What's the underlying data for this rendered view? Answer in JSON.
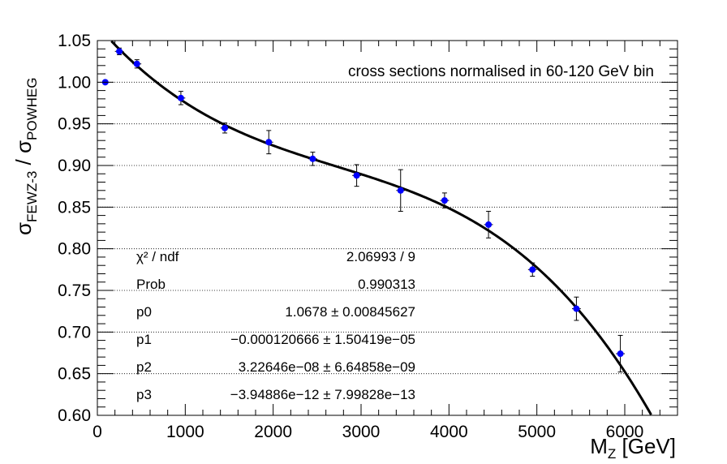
{
  "chart_data": {
    "type": "scatter",
    "annotation": "cross sections normalised in 60-120 GeV bin",
    "xlabel": {
      "main": "M",
      "sub": "Z",
      "rest": " [GeV]"
    },
    "ylabel": {
      "sigma": "σ",
      "sub1": "FEWZ-3",
      "slash": " / ",
      "sub2": "POWHEG"
    },
    "xlim": [
      0,
      6600
    ],
    "ylim": [
      0.6,
      1.05
    ],
    "xticks": [
      0,
      1000,
      2000,
      3000,
      4000,
      5000,
      6000
    ],
    "xtick_labels": [
      "0",
      "1000",
      "2000",
      "3000",
      "4000",
      "5000",
      "6000"
    ],
    "yticks": [
      0.6,
      0.65,
      0.7,
      0.75,
      0.8,
      0.85,
      0.9,
      0.95,
      1.0,
      1.05
    ],
    "ytick_labels": [
      "0.60",
      "0.65",
      "0.70",
      "0.75",
      "0.80",
      "0.85",
      "0.90",
      "0.95",
      "1.00",
      "1.05"
    ],
    "grid": "horizontal dotted",
    "marker_color": "#0000ff",
    "points": [
      {
        "x": 90,
        "y": 1.0,
        "xerr": 0,
        "yerr": 0.0
      },
      {
        "x": 250,
        "y": 1.037,
        "xerr": 50,
        "yerr": 0.004
      },
      {
        "x": 450,
        "y": 1.022,
        "xerr": 50,
        "yerr": 0.005
      },
      {
        "x": 950,
        "y": 0.981,
        "xerr": 50,
        "yerr": 0.008
      },
      {
        "x": 1450,
        "y": 0.945,
        "xerr": 50,
        "yerr": 0.006
      },
      {
        "x": 1950,
        "y": 0.928,
        "xerr": 50,
        "yerr": 0.014
      },
      {
        "x": 2450,
        "y": 0.908,
        "xerr": 50,
        "yerr": 0.008
      },
      {
        "x": 2950,
        "y": 0.888,
        "xerr": 50,
        "yerr": 0.013
      },
      {
        "x": 3450,
        "y": 0.87,
        "xerr": 50,
        "yerr": 0.025
      },
      {
        "x": 3950,
        "y": 0.858,
        "xerr": 50,
        "yerr": 0.009
      },
      {
        "x": 4450,
        "y": 0.829,
        "xerr": 50,
        "yerr": 0.016
      },
      {
        "x": 4950,
        "y": 0.775,
        "xerr": 50,
        "yerr": 0.008
      },
      {
        "x": 5450,
        "y": 0.728,
        "xerr": 50,
        "yerr": 0.014
      },
      {
        "x": 5950,
        "y": 0.674,
        "xerr": 50,
        "yerr": 0.022
      }
    ],
    "fit": {
      "function": "cubic polynomial p0 + p1*x + p2*x^2 + p3*x^3",
      "p0": 1.0678,
      "p1": -0.000120666,
      "p2": 3.22646e-08,
      "p3": -3.94886e-12,
      "color": "#000000"
    },
    "stats": [
      {
        "name": "χ² / ndf",
        "value": "2.06993 / 9"
      },
      {
        "name": "Prob",
        "value": "0.990313"
      },
      {
        "name": "p0",
        "value": "1.0678 ± 0.00845627"
      },
      {
        "name": "p1",
        "value": "−0.000120666 ± 1.50419e−05"
      },
      {
        "name": "p2",
        "value": "3.22646e−08 ± 6.64858e−09"
      },
      {
        "name": "p3",
        "value": "−3.94886e−12 ± 7.99828e−13"
      }
    ]
  }
}
